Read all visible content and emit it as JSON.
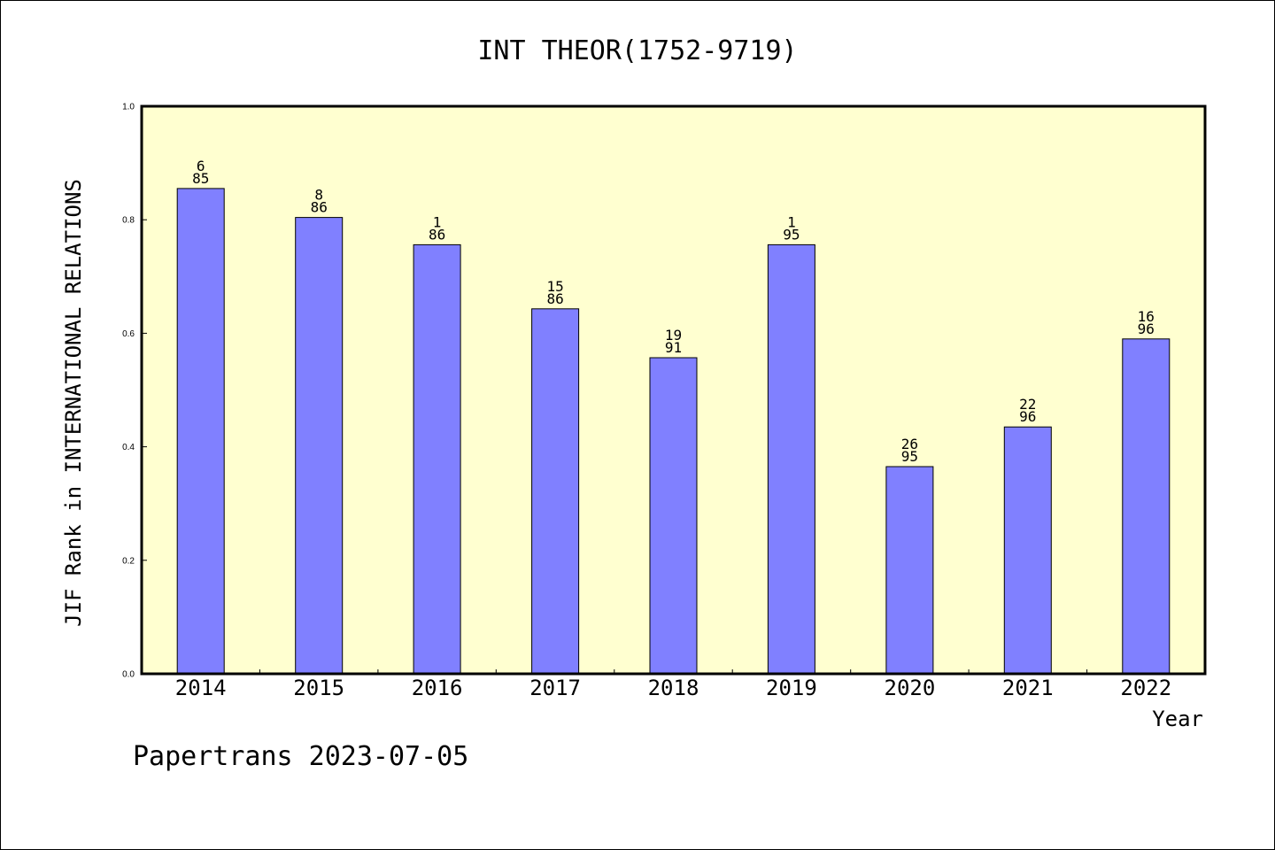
{
  "chart_data": {
    "type": "bar",
    "title": "INT THEOR(1752-9719)",
    "xlabel": "Year",
    "ylabel": "JIF Rank in INTERNATIONAL RELATIONS",
    "categories": [
      "2014",
      "2015",
      "2016",
      "2017",
      "2018",
      "2019",
      "2020",
      "2021",
      "2022"
    ],
    "values": [
      0.855,
      0.804,
      0.756,
      0.643,
      0.557,
      0.756,
      0.365,
      0.435,
      0.59
    ],
    "bar_labels": [
      {
        "rank": "6",
        "total": "85"
      },
      {
        "rank": "8",
        "total": "86"
      },
      {
        "rank": "1",
        "total": "86"
      },
      {
        "rank": "15",
        "total": "86"
      },
      {
        "rank": "19",
        "total": "91"
      },
      {
        "rank": "1",
        "total": "95"
      },
      {
        "rank": "26",
        "total": "95"
      },
      {
        "rank": "22",
        "total": "96"
      },
      {
        "rank": "16",
        "total": "96"
      }
    ],
    "ylim": [
      0,
      1.0
    ],
    "yticks": [
      "0.0",
      "0.2",
      "0.4",
      "0.6",
      "0.8",
      "1.0"
    ],
    "grid": false,
    "colors": {
      "bar": "#8080ff",
      "plot_background": "#ffffd0",
      "axis": "#000000"
    }
  },
  "footer": {
    "credit": "Papertrans 2023-07-05"
  }
}
